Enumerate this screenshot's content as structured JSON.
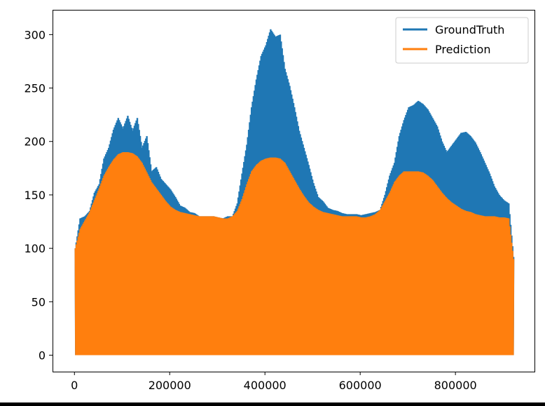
{
  "chart_data": {
    "type": "line",
    "title": "",
    "xlabel": "",
    "ylabel": "",
    "xlim": [
      -46000,
      966000
    ],
    "ylim": [
      -15.4,
      323.2
    ],
    "x_ticks": [
      0,
      200000,
      400000,
      600000,
      800000
    ],
    "x_tick_labels": [
      "0",
      "200000",
      "400000",
      "600000",
      "800000"
    ],
    "y_ticks": [
      0,
      50,
      100,
      150,
      200,
      250,
      300
    ],
    "y_tick_labels": [
      "0",
      "50",
      "100",
      "150",
      "200",
      "250",
      "300"
    ],
    "grid": false,
    "legend_position": "top-right",
    "oscillation": "Both series oscillate rapidly between 0 and the daily peak values listed (daily cycles over ~922000 samples).",
    "series": [
      {
        "name": "GroundTruth",
        "color": "#1f77b4",
        "x": [
          2000,
          12000,
          22000,
          32000,
          42000,
          52000,
          62000,
          72000,
          82000,
          92000,
          102000,
          112000,
          122000,
          132000,
          142000,
          152000,
          162000,
          172000,
          182000,
          192000,
          202000,
          212000,
          222000,
          232000,
          242000,
          252000,
          262000,
          272000,
          282000,
          292000,
          302000,
          312000,
          322000,
          332000,
          342000,
          352000,
          362000,
          372000,
          382000,
          392000,
          402000,
          412000,
          422000,
          432000,
          442000,
          452000,
          462000,
          472000,
          482000,
          492000,
          502000,
          512000,
          522000,
          532000,
          542000,
          552000,
          562000,
          572000,
          582000,
          592000,
          602000,
          612000,
          622000,
          632000,
          642000,
          652000,
          662000,
          672000,
          682000,
          692000,
          702000,
          712000,
          722000,
          732000,
          742000,
          752000,
          762000,
          772000,
          782000,
          792000,
          802000,
          812000,
          822000,
          832000,
          842000,
          852000,
          862000,
          872000,
          882000,
          892000,
          902000,
          912000,
          922000
        ],
        "values": [
          100,
          128,
          130,
          135,
          152,
          160,
          184,
          194,
          211,
          222,
          212,
          224,
          210,
          222,
          194,
          205,
          172,
          176,
          165,
          160,
          155,
          148,
          140,
          138,
          134,
          133,
          130,
          130,
          130,
          130,
          129,
          128,
          130,
          130,
          142,
          170,
          197,
          232,
          258,
          280,
          290,
          305,
          298,
          300,
          268,
          252,
          232,
          210,
          194,
          178,
          161,
          148,
          144,
          138,
          136,
          135,
          133,
          132,
          132,
          132,
          131,
          132,
          133,
          134,
          136,
          150,
          168,
          180,
          205,
          220,
          232,
          234,
          238,
          235,
          230,
          222,
          214,
          200,
          190,
          196,
          202,
          208,
          209,
          205,
          199,
          190,
          180,
          170,
          158,
          150,
          145,
          142,
          92
        ]
      },
      {
        "name": "Prediction",
        "color": "#ff7f0e",
        "x": [
          2000,
          12000,
          22000,
          32000,
          42000,
          52000,
          62000,
          72000,
          82000,
          92000,
          102000,
          112000,
          122000,
          132000,
          142000,
          152000,
          162000,
          172000,
          182000,
          192000,
          202000,
          212000,
          222000,
          232000,
          242000,
          252000,
          262000,
          272000,
          282000,
          292000,
          302000,
          312000,
          322000,
          332000,
          342000,
          352000,
          362000,
          372000,
          382000,
          392000,
          402000,
          412000,
          422000,
          432000,
          442000,
          452000,
          462000,
          472000,
          482000,
          492000,
          502000,
          512000,
          522000,
          532000,
          542000,
          552000,
          562000,
          572000,
          582000,
          592000,
          602000,
          612000,
          622000,
          632000,
          642000,
          652000,
          662000,
          672000,
          682000,
          692000,
          702000,
          712000,
          722000,
          732000,
          742000,
          752000,
          762000,
          772000,
          782000,
          792000,
          802000,
          812000,
          822000,
          832000,
          842000,
          852000,
          862000,
          872000,
          882000,
          892000,
          902000,
          912000,
          922000
        ],
        "values": [
          100,
          118,
          126,
          134,
          145,
          156,
          168,
          176,
          183,
          188,
          190,
          190,
          189,
          186,
          180,
          171,
          162,
          156,
          150,
          144,
          139,
          136,
          134,
          133,
          132,
          131,
          130,
          130,
          130,
          130,
          129,
          128,
          128,
          130,
          135,
          146,
          160,
          172,
          178,
          182,
          184,
          185,
          185,
          184,
          180,
          172,
          164,
          156,
          149,
          143,
          139,
          136,
          134,
          133,
          132,
          131,
          130,
          130,
          130,
          130,
          129,
          129,
          130,
          132,
          136,
          144,
          152,
          162,
          168,
          172,
          172,
          172,
          172,
          171,
          168,
          164,
          158,
          152,
          147,
          143,
          140,
          137,
          135,
          134,
          132,
          131,
          130,
          130,
          130,
          129,
          129,
          128,
          90
        ]
      }
    ]
  }
}
